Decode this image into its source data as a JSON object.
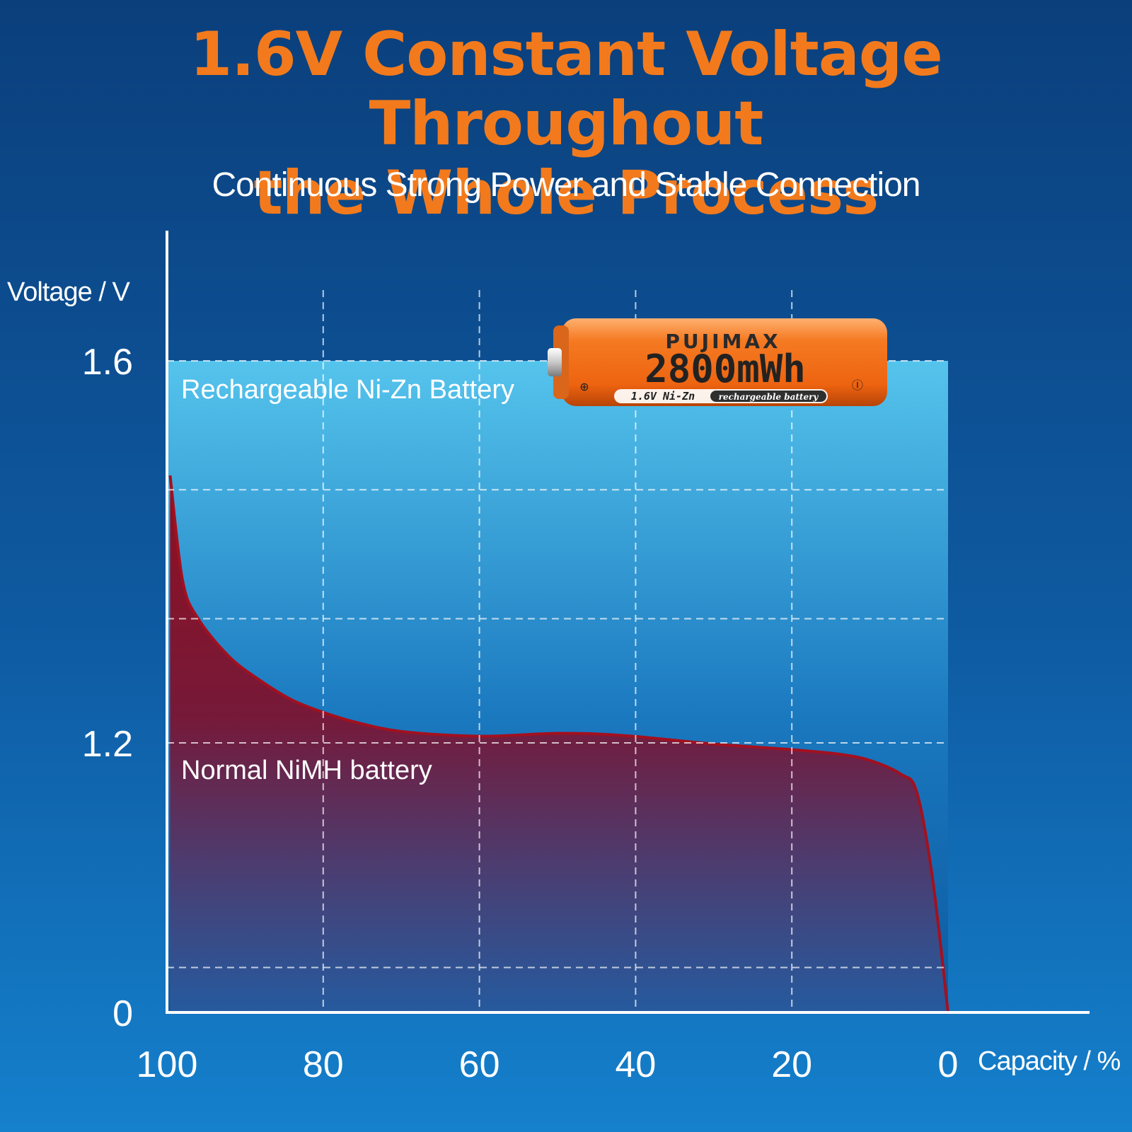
{
  "header": {
    "title_line1": "1.6V Constant Voltage Throughout",
    "title_line2": "the Whole Process",
    "subtitle": "Continuous Strong Power and Stable Connection"
  },
  "colors": {
    "title": "#f27a1c",
    "nizn_fill_top": "#55c4ec",
    "nimh_fill_top": "#8e0f1f",
    "nimh_line": "#a3101f",
    "battery_body": "#f26a1a"
  },
  "chart_data": {
    "type": "area",
    "xlabel": "Capacity / %",
    "ylabel": "Voltage / V",
    "x_ticks": [
      100,
      80,
      60,
      40,
      20,
      0
    ],
    "y_ticks": [
      "1.6",
      "1.2",
      "0"
    ],
    "x_reversed": true,
    "grid": true,
    "series": [
      {
        "name": "Rechargeable Ni-Zn Battery",
        "points": [
          [
            100,
            1.6
          ],
          [
            0,
            1.6
          ]
        ]
      },
      {
        "name": "Normal NiMH battery",
        "points": [
          [
            99.6,
            1.48
          ],
          [
            98,
            1.37
          ],
          [
            96,
            1.33
          ],
          [
            92,
            1.29
          ],
          [
            88,
            1.265
          ],
          [
            84,
            1.245
          ],
          [
            80,
            1.232
          ],
          [
            76,
            1.222
          ],
          [
            70,
            1.212
          ],
          [
            60,
            1.207
          ],
          [
            50,
            1.21
          ],
          [
            42,
            1.208
          ],
          [
            30,
            1.195
          ],
          [
            20,
            1.17
          ],
          [
            14,
            1.15
          ],
          [
            10,
            1.122
          ],
          [
            6,
            1.06
          ],
          [
            4,
            0.98
          ],
          [
            2,
            0.6
          ],
          [
            0,
            0.0
          ]
        ]
      }
    ]
  },
  "battery": {
    "brand": "PUJIMAX",
    "capacity": "2800mWh",
    "voltage_type": "1.6V Ni-Zn",
    "tag": "rechargeable battery",
    "plus": "⊕",
    "minus": "Ⓘ"
  }
}
